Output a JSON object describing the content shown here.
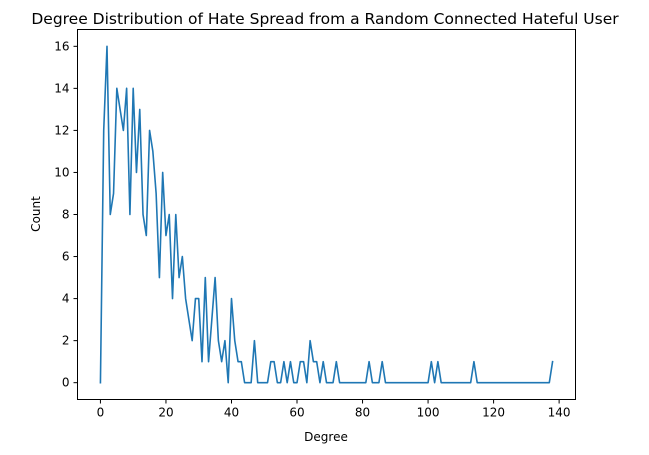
{
  "chart_data": {
    "type": "line",
    "title": "Degree Distribution of Hate Spread from a Random Connected Hateful User",
    "xlabel": "Degree",
    "ylabel": "Count",
    "xlim": [
      -7,
      145
    ],
    "ylim": [
      -0.8,
      16.8
    ],
    "xticks": [
      0,
      20,
      40,
      60,
      80,
      100,
      120,
      140
    ],
    "yticks": [
      0,
      2,
      4,
      6,
      8,
      10,
      12,
      14,
      16
    ],
    "grid": false,
    "line_color": "#1f77b4",
    "series": [
      {
        "x": [
          0,
          1,
          2,
          3,
          4,
          5,
          6,
          7,
          8,
          9,
          10,
          11,
          12,
          13,
          14,
          15,
          16,
          17,
          18,
          19,
          20,
          21,
          22,
          23,
          24,
          25,
          26,
          27,
          28,
          29,
          30,
          31,
          32,
          33,
          34,
          35,
          36,
          37,
          38,
          39,
          40,
          41,
          42,
          43,
          44,
          45,
          46,
          47,
          48,
          49,
          50,
          51,
          52,
          53,
          54,
          55,
          56,
          57,
          58,
          59,
          60,
          61,
          62,
          63,
          64,
          65,
          66,
          67,
          68,
          69,
          70,
          71,
          72,
          73,
          74,
          75,
          76,
          77,
          78,
          79,
          80,
          81,
          82,
          83,
          84,
          85,
          86,
          87,
          88,
          89,
          90,
          91,
          92,
          93,
          94,
          95,
          96,
          97,
          98,
          99,
          100,
          101,
          102,
          103,
          104,
          105,
          106,
          107,
          108,
          109,
          110,
          111,
          112,
          113,
          114,
          115,
          116,
          117,
          118,
          119,
          120,
          121,
          122,
          123,
          124,
          125,
          126,
          127,
          128,
          129,
          130,
          131,
          132,
          133,
          134,
          135,
          136,
          137,
          138
        ],
        "values": [
          0,
          12,
          16,
          8,
          9,
          14,
          13,
          12,
          14,
          8,
          14,
          10,
          13,
          8,
          7,
          12,
          11,
          9,
          5,
          10,
          7,
          8,
          4,
          8,
          5,
          6,
          4,
          3,
          2,
          4,
          4,
          1,
          5,
          1,
          3,
          5,
          2,
          1,
          2,
          0,
          4,
          2,
          1,
          1,
          0,
          0,
          0,
          2,
          0,
          0,
          0,
          0,
          1,
          1,
          0,
          0,
          1,
          0,
          1,
          0,
          0,
          1,
          1,
          0,
          2,
          1,
          1,
          0,
          1,
          0,
          0,
          0,
          1,
          0,
          0,
          0,
          0,
          0,
          0,
          0,
          0,
          0,
          1,
          0,
          0,
          0,
          1,
          0,
          0,
          0,
          0,
          0,
          0,
          0,
          0,
          0,
          0,
          0,
          0,
          0,
          0,
          1,
          0,
          1,
          0,
          0,
          0,
          0,
          0,
          0,
          0,
          0,
          0,
          0,
          1,
          0,
          0,
          0,
          0,
          0,
          0,
          0,
          0,
          0,
          0,
          0,
          0,
          0,
          0,
          0,
          0,
          0,
          0,
          0,
          0,
          0,
          0,
          0,
          1
        ]
      }
    ]
  }
}
